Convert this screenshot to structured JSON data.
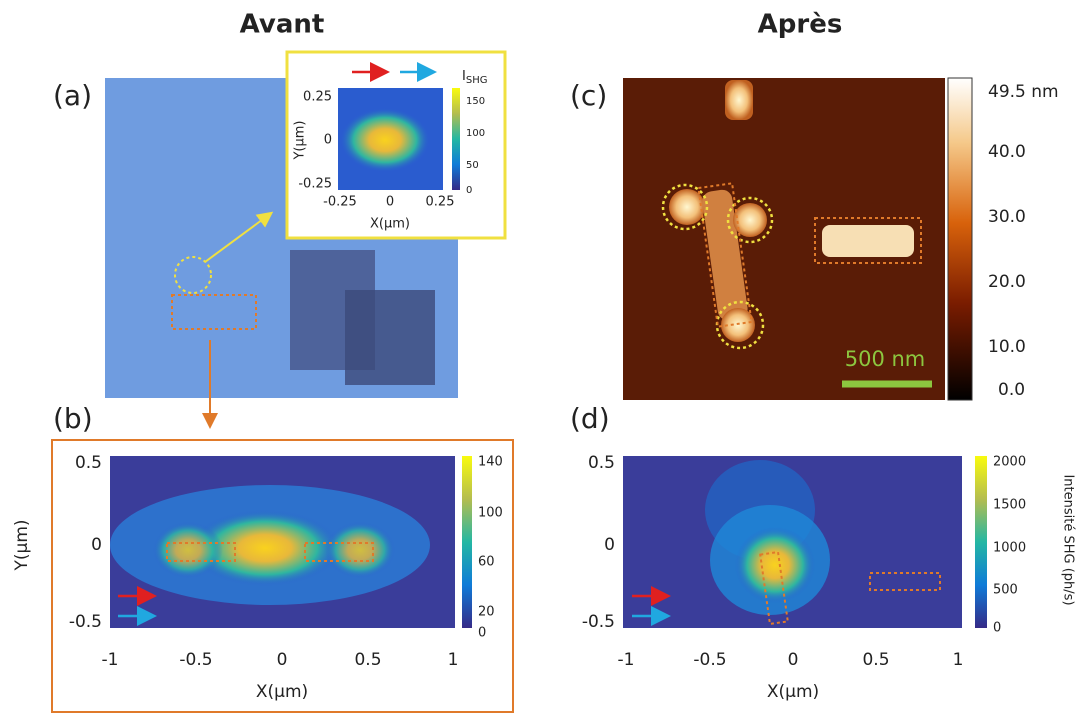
{
  "titles": {
    "left": "Avant",
    "right": "Après"
  },
  "panel_a": {
    "label": "(a)",
    "inset": {
      "ylabel": "Y(µm)",
      "xlabel": "X(µm)",
      "yticks": [
        "0.25",
        "0",
        "-0.25"
      ],
      "xticks": [
        "-0.25",
        "0",
        "0.25"
      ],
      "colorbar_label": "I",
      "colorbar_label_sub": "SHG",
      "colorbar_ticks": [
        "150",
        "100",
        "50",
        "0"
      ]
    }
  },
  "panel_b": {
    "label": "(b)",
    "ylabel": "Y(µm)",
    "xlabel": "X(µm)",
    "yticks": [
      "0.5",
      "0",
      "-0.5"
    ],
    "xticks": [
      "-1",
      "-0.5",
      "0",
      "0.5",
      "1"
    ],
    "colorbar_ticks": [
      "140",
      "100",
      "60",
      "20",
      "0"
    ]
  },
  "panel_c": {
    "label": "(c)",
    "colorbar_ticks": [
      "49.5 nm",
      "40.0",
      "30.0",
      "20.0",
      "10.0",
      "0.0"
    ],
    "scale_bar": "500 nm"
  },
  "panel_d": {
    "label": "(d)",
    "xlabel": "X(µm)",
    "yticks": [
      "0.5",
      "0",
      "-0.5"
    ],
    "xticks": [
      "-1",
      "-0.5",
      "0",
      "0.5",
      "1"
    ],
    "colorbar_ticks": [
      "2000",
      "1500",
      "1000",
      "500",
      "0"
    ],
    "colorbar_label": "Intensité SHG (ph/s)"
  }
}
